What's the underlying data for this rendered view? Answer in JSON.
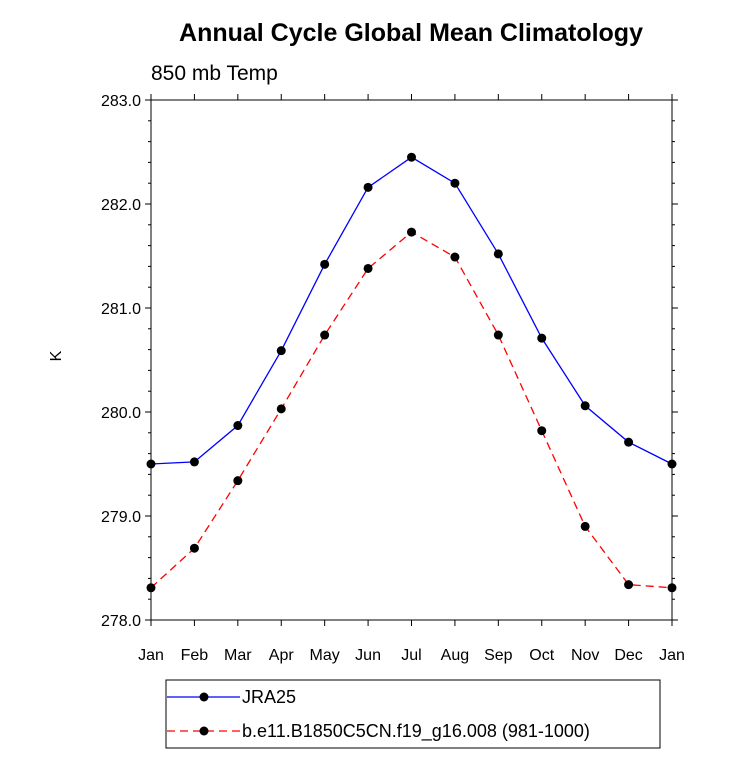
{
  "chart_data": {
    "type": "line",
    "title": "Annual Cycle Global Mean Climatology",
    "subtitle": "850 mb Temp",
    "xlabel": "",
    "ylabel": "K",
    "categories": [
      "Jan",
      "Feb",
      "Mar",
      "Apr",
      "May",
      "Jun",
      "Jul",
      "Aug",
      "Sep",
      "Oct",
      "Nov",
      "Dec",
      "Jan"
    ],
    "ylim": [
      278.0,
      283.0
    ],
    "yticks": [
      278.0,
      279.0,
      280.0,
      281.0,
      282.0,
      283.0
    ],
    "ytick_labels": [
      "278.0",
      "279.0",
      "280.0",
      "281.0",
      "282.0",
      "283.0"
    ],
    "grid": false,
    "legend_position": "bottom",
    "series": [
      {
        "name": "JRA25",
        "color": "#0000ff",
        "dash": "solid",
        "values": [
          279.5,
          279.52,
          279.87,
          280.59,
          281.42,
          282.16,
          282.45,
          282.2,
          281.52,
          280.71,
          280.06,
          279.71,
          279.5
        ]
      },
      {
        "name": "b.e11.B1850C5CN.f19_g16.008 (981-1000)",
        "color": "#ff0000",
        "dash": "dashed",
        "values": [
          278.31,
          278.69,
          279.34,
          280.03,
          280.74,
          281.38,
          281.73,
          281.49,
          280.74,
          279.82,
          278.9,
          278.34,
          278.31
        ]
      }
    ]
  }
}
